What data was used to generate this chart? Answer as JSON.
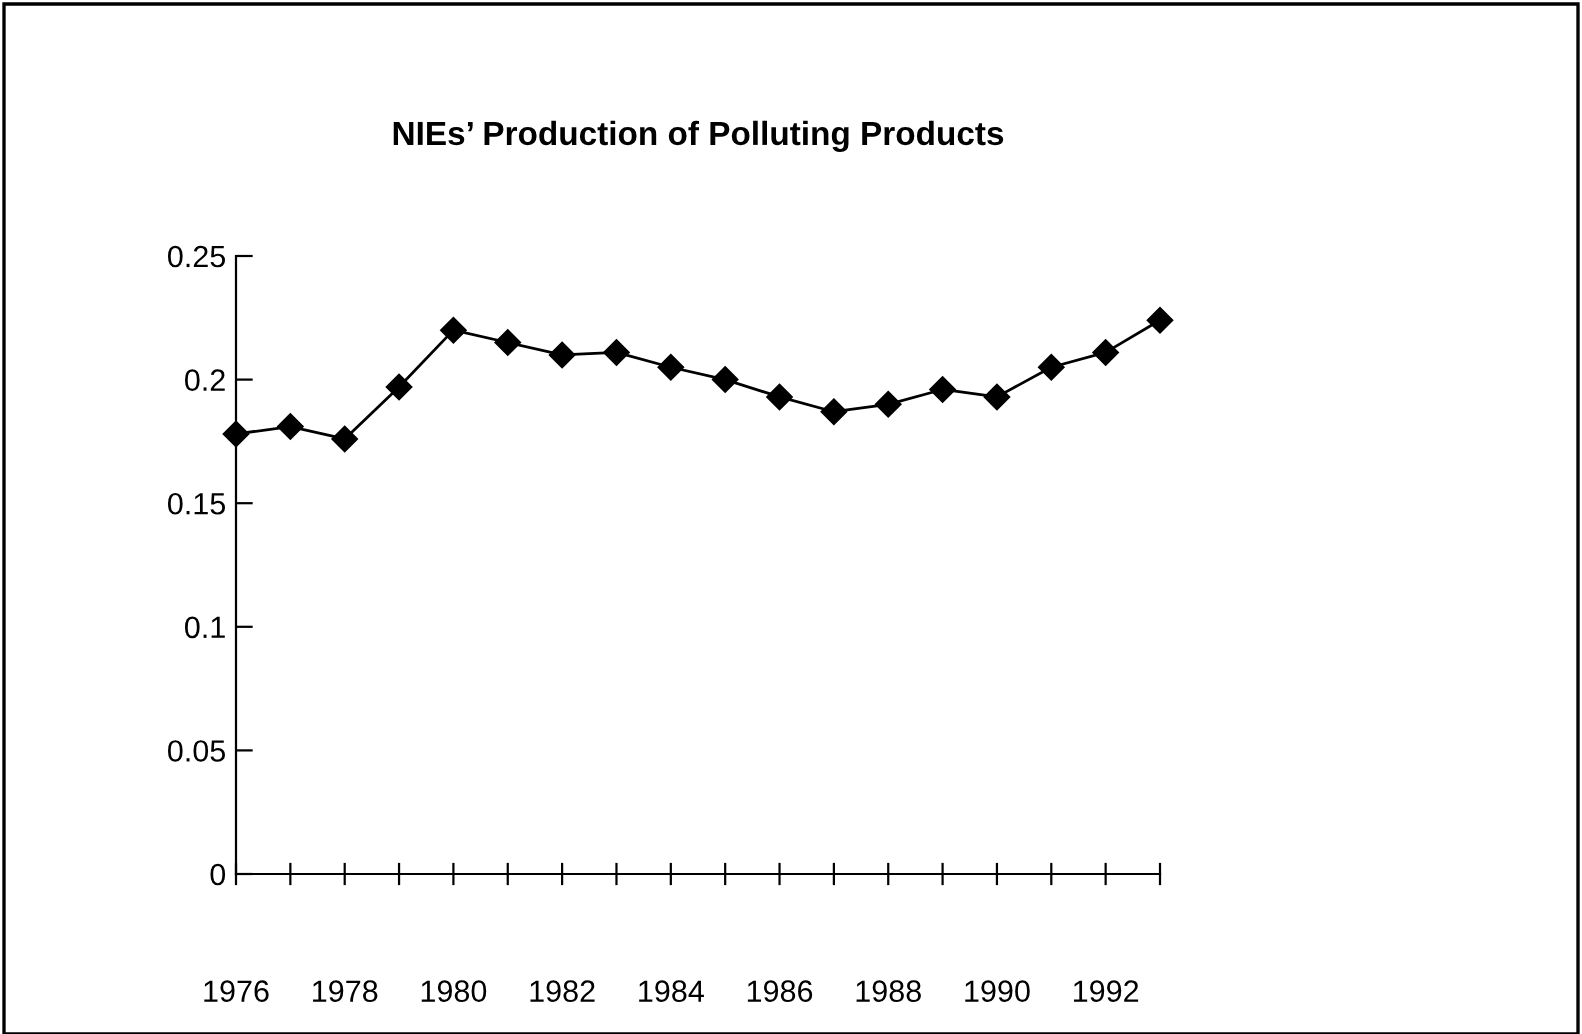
{
  "chart_data": {
    "type": "line",
    "title": "NIEs’ Production of Polluting Products",
    "categories": [
      "1976",
      null,
      "1978",
      null,
      "1980",
      null,
      "1982",
      null,
      "1984",
      null,
      "1986",
      null,
      "1988",
      null,
      "1990",
      null,
      "1992",
      null
    ],
    "series": [
      {
        "color": "#000000",
        "values": [
          0.178,
          0.181,
          0.176,
          0.197,
          0.22,
          0.215,
          0.21,
          0.211,
          0.205,
          0.2,
          0.193,
          0.187,
          0.19,
          0.196,
          0.193,
          0.205,
          0.211,
          0.224
        ]
      }
    ],
    "ylim": [
      0,
      0.25
    ],
    "yticks": [
      0,
      0.05,
      0.1,
      0.15,
      0.2,
      0.25
    ],
    "grid": false,
    "legend": false,
    "marker": "diamond",
    "line_style": "solid"
  }
}
